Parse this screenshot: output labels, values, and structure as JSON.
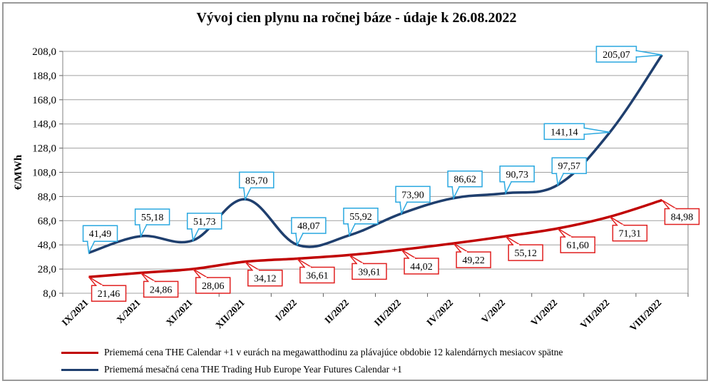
{
  "chart_data": {
    "type": "line",
    "title": "Vývoj cien plynu na ročnej báze - údaje k 26.08.2022",
    "ylabel": "€/MWh",
    "xlabel": "",
    "ylim": [
      8.0,
      208.0
    ],
    "yticks": [
      "8,0",
      "28,0",
      "48,0",
      "68,0",
      "88,0",
      "108,0",
      "128,0",
      "148,0",
      "168,0",
      "188,0",
      "208,0"
    ],
    "ytick_values": [
      8,
      28,
      48,
      68,
      88,
      108,
      128,
      148,
      168,
      188,
      208
    ],
    "categories": [
      "IX/2021",
      "X/2021",
      "XI/2021",
      "XII/2021",
      "I/2022",
      "II/2022",
      "III/2022",
      "IV/2022",
      "V/2022",
      "VI/2022",
      "VII/2022",
      "VIII/2022"
    ],
    "grid": true,
    "legend_position": "bottom",
    "series": [
      {
        "name": "Priememá cena THE Calendar +1 v eurách na megawatthodinu za plávajúce obdobie 12 kalendárnych mesiacov spätne",
        "color": "#c00000",
        "label_color": "#e02020",
        "values": [
          21.46,
          24.86,
          28.06,
          34.12,
          36.61,
          39.61,
          44.02,
          49.22,
          55.12,
          61.6,
          71.31,
          84.98
        ],
        "labels": [
          "21,46",
          "24,86",
          "28,06",
          "34,12",
          "36,61",
          "39,61",
          "44,02",
          "49,22",
          "55,12",
          "61,60",
          "71,31",
          "84,98"
        ]
      },
      {
        "name": "Priememá mesačná cena THE Trading Hub Europe Year Futures Calendar +1",
        "color": "#1f3f6e",
        "label_color": "#2aa8e0",
        "values": [
          41.49,
          55.18,
          51.73,
          85.7,
          48.07,
          55.92,
          73.9,
          86.62,
          90.73,
          97.57,
          141.14,
          205.07
        ],
        "labels": [
          "41,49",
          "55,18",
          "51,73",
          "85,70",
          "48,07",
          "55,92",
          "73,90",
          "86,62",
          "90,73",
          "97,57",
          "141,14",
          "205,07"
        ]
      }
    ]
  }
}
